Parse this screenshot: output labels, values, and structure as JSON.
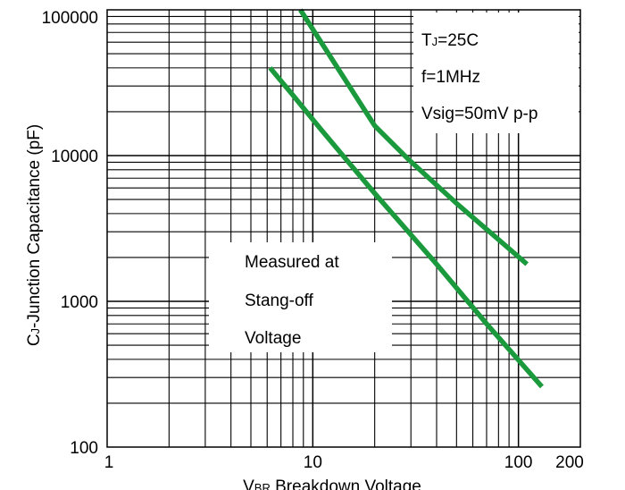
{
  "chart_data": {
    "type": "line",
    "xlabel": {
      "main": "V",
      "sub": "BR",
      "rest": " Breakdown Voltage"
    },
    "ylabel": {
      "main": "C",
      "sub": "J",
      "rest": "-Junction Capacitance (pF)"
    },
    "xscale": "log",
    "yscale": "log",
    "xlim": [
      1,
      200
    ],
    "ylim": [
      100,
      100000
    ],
    "grid": true,
    "x_tick_labels": [
      "1",
      "10",
      "100",
      "200"
    ],
    "y_tick_labels": [
      "100000",
      "10000",
      "1000",
      "100"
    ],
    "series_color": "#1a9a3c",
    "series": [
      {
        "x": [
          8.7,
          20,
          29,
          50,
          110
        ],
        "y": [
          100000,
          16000,
          9500,
          4700,
          1800
        ]
      },
      {
        "x": [
          6.2,
          8,
          11,
          20,
          40,
          70,
          130
        ],
        "y": [
          40000,
          26000,
          15000,
          5500,
          1800,
          700,
          260
        ]
      }
    ],
    "annotations": {
      "conditions": {
        "tj_main": "T",
        "tj_sub": "J",
        "tj_rest": "=25C",
        "freq": "f=1MHz",
        "vsig": "Vsig=50mV p-p"
      },
      "measured": [
        "Measured at",
        "Stang-off",
        "Voltage"
      ]
    }
  }
}
